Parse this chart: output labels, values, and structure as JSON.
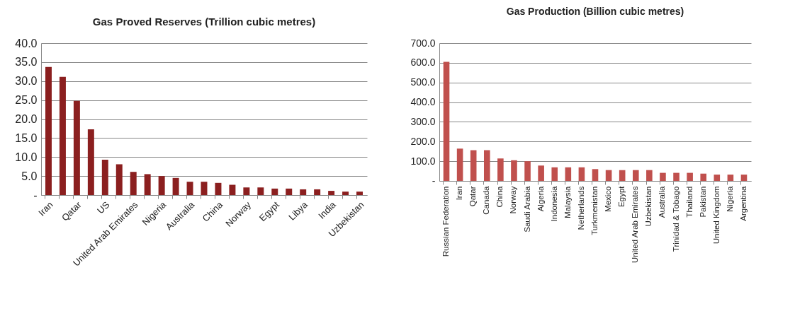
{
  "chart_data": [
    {
      "type": "bar",
      "title": "Gas Proved Reserves (Trillion cubic metres)",
      "categories": [
        "Iran",
        null,
        "Qatar",
        null,
        "US",
        null,
        "United Arab Emirates",
        null,
        "Nigeria",
        null,
        "Australia",
        null,
        "China",
        null,
        "Norway",
        null,
        "Egypt",
        null,
        "Libya",
        null,
        "India",
        null,
        "Uzbekistan"
      ],
      "values": [
        33.7,
        31.1,
        24.8,
        17.3,
        9.3,
        8.1,
        6.1,
        5.5,
        5.0,
        4.5,
        3.5,
        3.5,
        3.2,
        2.7,
        2.0,
        2.0,
        1.7,
        1.7,
        1.5,
        1.5,
        1.1,
        0.9,
        0.9
      ],
      "color": "#8b1f1f",
      "ylim": [
        0,
        40
      ],
      "yticks": [
        {
          "value": 0,
          "label": "-"
        },
        {
          "value": 5,
          "label": "5.0"
        },
        {
          "value": 10,
          "label": "10.0"
        },
        {
          "value": 15,
          "label": "15.0"
        },
        {
          "value": 20,
          "label": "20.0"
        },
        {
          "value": 25,
          "label": "25.0"
        },
        {
          "value": 30,
          "label": "30.0"
        },
        {
          "value": 35,
          "label": "35.0"
        },
        {
          "value": 40,
          "label": "40.0"
        }
      ],
      "grid": "y"
    },
    {
      "type": "bar",
      "title": "Gas Production (Billion cubic metres)",
      "categories": [
        "Russian Federation",
        "Iran",
        "Qatar",
        "Canada",
        "China",
        "Norway",
        "Saudi Arabia",
        "Algeria",
        "Indonesia",
        "Malaysia",
        "Netherlands",
        "Turkmenistan",
        "Mexico",
        "Egypt",
        "United Arab Emirates",
        "Uzbekistan",
        "Australia",
        "Trinidad & Tobago",
        "Thailand",
        "Pakistan",
        "United Kingdom",
        "Nigeria",
        "Argentina"
      ],
      "values": [
        605,
        164,
        156,
        156,
        114,
        105,
        100,
        78,
        69,
        69,
        69,
        60,
        55,
        55,
        55,
        55,
        41,
        41,
        41,
        37,
        32,
        32,
        32
      ],
      "color": "#c0504d",
      "ylim": [
        0,
        700
      ],
      "yticks": [
        {
          "value": 0,
          "label": "-"
        },
        {
          "value": 100,
          "label": "100.0"
        },
        {
          "value": 200,
          "label": "200.0"
        },
        {
          "value": 300,
          "label": "300.0"
        },
        {
          "value": 400,
          "label": "400.0"
        },
        {
          "value": 500,
          "label": "500.0"
        },
        {
          "value": 600,
          "label": "600.0"
        },
        {
          "value": 700,
          "label": "700.0"
        }
      ],
      "grid": "y"
    }
  ]
}
